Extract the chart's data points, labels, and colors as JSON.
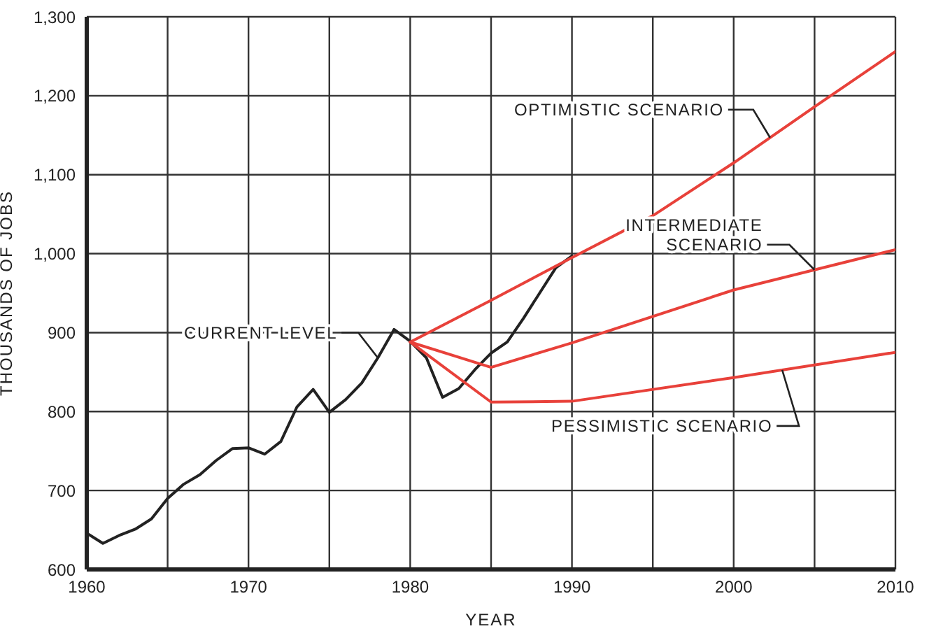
{
  "chart_data": {
    "type": "line",
    "xlabel": "YEAR",
    "ylabel": "THOUSANDS OF JOBS",
    "xlim": [
      1960,
      2010
    ],
    "ylim": [
      600,
      1300
    ],
    "xticks": [
      1960,
      {
        "value": 1965,
        "label": null
      },
      1970,
      {
        "value": 1975,
        "label": null
      },
      1980,
      {
        "value": 1985,
        "label": null
      },
      1990,
      {
        "value": 1995,
        "label": null
      },
      2000,
      {
        "value": 2005,
        "label": null
      },
      2010
    ],
    "yticks": [
      600,
      700,
      800,
      900,
      {
        "value": 1000,
        "label": "1,000"
      },
      {
        "value": 1100,
        "label": "1,100"
      },
      {
        "value": 1200,
        "label": "1,200"
      },
      {
        "value": 1300,
        "label": "1,300"
      }
    ],
    "grid": true,
    "legend": false,
    "marker": "none",
    "line_style": "solid",
    "series": [
      {
        "name": "CURRENT LEVEL",
        "color": "#222222",
        "x": [
          1960,
          1961,
          1962,
          1963,
          1964,
          1965,
          1966,
          1967,
          1968,
          1969,
          1970,
          1971,
          1972,
          1973,
          1974,
          1975,
          1976,
          1977,
          1978,
          1979,
          1980,
          1981,
          1982,
          1983,
          1984,
          1985,
          1986,
          1987,
          1988,
          1989,
          1990
        ],
        "values": [
          646,
          633,
          643,
          651,
          664,
          690,
          708,
          720,
          738,
          753,
          754,
          746,
          762,
          806,
          828,
          799,
          815,
          836,
          868,
          904,
          889,
          868,
          818,
          829,
          853,
          874,
          888,
          918,
          950,
          982,
          997
        ]
      },
      {
        "name": "OPTIMISTIC SCENARIO",
        "color": "#e8413a",
        "x": [
          1980,
          1985,
          1990,
          1995,
          2000,
          2005,
          2010
        ],
        "values": [
          888,
          941,
          995,
          1048,
          1115,
          1186,
          1256
        ]
      },
      {
        "name": "INTERMEDIATE\nSCENARIO",
        "color": "#e8413a",
        "x": [
          1980,
          1985,
          1990,
          2000,
          2010
        ],
        "values": [
          888,
          856,
          887,
          954,
          1005
        ]
      },
      {
        "name": "PESSIMISTIC SCENARIO",
        "color": "#e8413a",
        "x": [
          1980,
          1985,
          1990,
          2000,
          2010
        ],
        "values": [
          888,
          812,
          813,
          843,
          875
        ]
      }
    ]
  }
}
